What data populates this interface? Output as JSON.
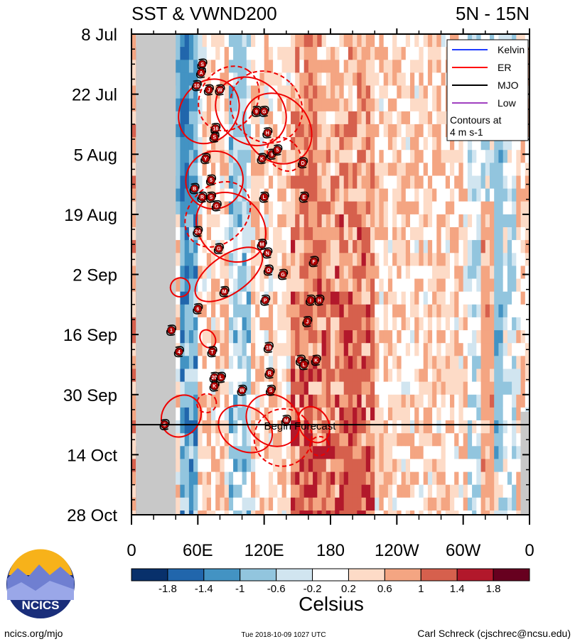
{
  "header": {
    "title_left": "SST & VWND200",
    "title_right": "5N - 15N"
  },
  "chart_data": {
    "type": "heatmap",
    "title": "SST & VWND200",
    "subtitle": "5N - 15N",
    "x_ticks": [
      "0",
      "60E",
      "120E",
      "180",
      "120W",
      "60W",
      "0"
    ],
    "x_range_deg_east": [
      0,
      360
    ],
    "y_ticks": [
      "8 Jul",
      "22 Jul",
      "5 Aug",
      "19 Aug",
      "2 Sep",
      "16 Sep",
      "30 Sep",
      "14 Oct",
      "28 Oct"
    ],
    "y_range_days_from_8jul": [
      0,
      112
    ],
    "forecast_start_day": 91,
    "forecast_label": "Begin Forecast",
    "colorbar": {
      "label": "Celsius",
      "tick_labels": [
        "-1.8",
        "-1.4",
        "-1",
        "-0.6",
        "-0.2",
        "0.2",
        "0.6",
        "1",
        "1.4",
        "1.8"
      ],
      "colors": [
        "#08306b",
        "#2166ac",
        "#4393c3",
        "#92c5de",
        "#d1e5f0",
        "#ffffff",
        "#fddbc7",
        "#f4a582",
        "#d6604d",
        "#b2182b",
        "#67001f"
      ]
    },
    "legend": {
      "items": [
        {
          "label": "Kelvin",
          "color": "#1f3cff"
        },
        {
          "label": "ER",
          "color": "#ff0000"
        },
        {
          "label": "MJO",
          "color": "#000000"
        },
        {
          "label": "Low",
          "color": "#a040c0"
        }
      ],
      "note_line1": "Contours at",
      "note_line2": "4 m s-1"
    },
    "bands": [
      {
        "lon": 40,
        "day": 0,
        "anom": -1.8
      },
      {
        "lon": 48,
        "day": 0,
        "anom": -1.4
      },
      {
        "lon": 55,
        "day": 0,
        "anom": -0.8
      },
      {
        "lon": 95,
        "day": 0,
        "anom": -0.9
      },
      {
        "lon": 160,
        "day": 30,
        "anom": 1.2
      },
      {
        "lon": 200,
        "day": 100,
        "anom": 1.3
      },
      {
        "lon": 330,
        "day": 60,
        "anom": -1.2
      },
      {
        "lon": 320,
        "day": 78,
        "anom": 1.5
      }
    ],
    "storms": [
      {
        "label": "S",
        "lon": 64,
        "day": 7
      },
      {
        "label": "A",
        "lon": 63,
        "day": 9
      },
      {
        "label": "10",
        "lon": 59,
        "day": 12
      },
      {
        "label": "J",
        "lon": 70,
        "day": 13
      },
      {
        "label": "W",
        "lon": 80,
        "day": 13
      },
      {
        "label": "9",
        "lon": 113,
        "day": 18
      },
      {
        "label": "G",
        "lon": 120,
        "day": 18
      },
      {
        "label": "16",
        "lon": 76,
        "day": 22
      },
      {
        "label": "S",
        "lon": 75,
        "day": 24
      },
      {
        "label": "H",
        "lon": 123,
        "day": 23
      },
      {
        "label": "K",
        "lon": 118,
        "day": 29
      },
      {
        "label": "9",
        "lon": 127,
        "day": 28
      },
      {
        "label": "5",
        "lon": 132,
        "day": 27
      },
      {
        "label": "Y",
        "lon": 67,
        "day": 29
      },
      {
        "label": "D",
        "lon": 155,
        "day": 30
      },
      {
        "label": "5",
        "lon": 72,
        "day": 34
      },
      {
        "label": "B",
        "lon": 57,
        "day": 36
      },
      {
        "label": "R",
        "lon": 64,
        "day": 38
      },
      {
        "label": "S",
        "lon": 72,
        "day": 38
      },
      {
        "label": "L",
        "lon": 120,
        "day": 38
      },
      {
        "label": "E",
        "lon": 156,
        "day": 38
      },
      {
        "label": "G",
        "lon": 77,
        "day": 40
      },
      {
        "label": "24",
        "lon": 60,
        "day": 46
      },
      {
        "label": "M",
        "lon": 118,
        "day": 49
      },
      {
        "label": "N",
        "lon": 123,
        "day": 51
      },
      {
        "label": "G",
        "lon": 79,
        "day": 50
      },
      {
        "label": "F",
        "lon": 165,
        "day": 53
      },
      {
        "label": "O",
        "lon": 124,
        "day": 55
      },
      {
        "label": "G",
        "lon": 137,
        "day": 56
      },
      {
        "label": "M",
        "lon": 84,
        "day": 60
      },
      {
        "label": "P",
        "lon": 121,
        "day": 62
      },
      {
        "label": "I",
        "lon": 162,
        "day": 62
      },
      {
        "label": "H",
        "lon": 170,
        "day": 62
      },
      {
        "label": "6",
        "lon": 60,
        "day": 64
      },
      {
        "label": "J",
        "lon": 159,
        "day": 67
      },
      {
        "label": "1",
        "lon": 36,
        "day": 69
      },
      {
        "label": "19",
        "lon": 124,
        "day": 73
      },
      {
        "label": "4",
        "lon": 43,
        "day": 74
      },
      {
        "label": "T",
        "lon": 73,
        "day": 74
      },
      {
        "label": "1",
        "lon": 153,
        "day": 76
      },
      {
        "label": "L",
        "lon": 156,
        "day": 77
      },
      {
        "label": "K",
        "lon": 167,
        "day": 76
      },
      {
        "label": "R",
        "lon": 125,
        "day": 79
      },
      {
        "label": "20",
        "lon": 75,
        "day": 80
      },
      {
        "label": "K",
        "lon": 75,
        "day": 82
      },
      {
        "label": "L",
        "lon": 81,
        "day": 80
      },
      {
        "label": "S",
        "lon": 126,
        "day": 83
      },
      {
        "label": "W",
        "lon": 100,
        "day": 83
      },
      {
        "label": "5",
        "lon": 30,
        "day": 91
      },
      {
        "label": "M",
        "lon": 140,
        "day": 90
      }
    ],
    "er_contours": [
      {
        "lon": 70,
        "day": 18,
        "rx": 14,
        "ry": 3,
        "rot": -55,
        "dashed": false
      },
      {
        "lon": 88,
        "day": 15,
        "rx": 14,
        "ry": 3,
        "rot": -55,
        "dashed": true
      },
      {
        "lon": 108,
        "day": 18,
        "rx": 13,
        "ry": 4,
        "rot": -50,
        "dashed": false
      },
      {
        "lon": 122,
        "day": 17,
        "rx": 14,
        "ry": 4,
        "rot": -45,
        "dashed": true
      },
      {
        "lon": 132,
        "day": 22,
        "rx": 13,
        "ry": 4,
        "rot": -40,
        "dashed": false
      },
      {
        "lon": 138,
        "day": 28,
        "rx": 6,
        "ry": 2,
        "rot": -45,
        "dashed": true
      },
      {
        "lon": 75,
        "day": 34,
        "rx": 12,
        "ry": 3,
        "rot": -55,
        "dashed": false
      },
      {
        "lon": 78,
        "day": 42,
        "rx": 15,
        "ry": 3,
        "rot": -45,
        "dashed": true
      },
      {
        "lon": 90,
        "day": 45,
        "rx": 13,
        "ry": 4,
        "rot": -45,
        "dashed": false
      },
      {
        "lon": 88,
        "day": 56,
        "rx": 16,
        "ry": 2,
        "rot": -35,
        "dashed": false
      },
      {
        "lon": 44,
        "day": 59,
        "rx": 4,
        "ry": 1,
        "rot": -20,
        "dashed": false
      },
      {
        "lon": 69,
        "day": 71,
        "rx": 3,
        "ry": 1,
        "rot": -30,
        "dashed": false
      },
      {
        "lon": 45,
        "day": 89,
        "rx": 9,
        "ry": 2,
        "rot": -55,
        "dashed": false
      },
      {
        "lon": 68,
        "day": 86,
        "rx": 4,
        "ry": 1,
        "rot": -20,
        "dashed": true
      },
      {
        "lon": 103,
        "day": 92,
        "rx": 9,
        "ry": 3,
        "rot": -60,
        "dashed": false
      },
      {
        "lon": 128,
        "day": 90,
        "rx": 10,
        "ry": 3,
        "rot": -50,
        "dashed": false
      },
      {
        "lon": 137,
        "day": 94,
        "rx": 12,
        "ry": 3,
        "rot": -45,
        "dashed": true
      },
      {
        "lon": 165,
        "day": 91,
        "rx": 6,
        "ry": 2,
        "rot": -30,
        "dashed": false
      },
      {
        "lon": 170,
        "day": 96,
        "rx": 4,
        "ry": 1,
        "rot": -30,
        "dashed": true
      }
    ]
  },
  "logo": {
    "name": "NCICS"
  },
  "footer": {
    "left": "ncics.org/mjo",
    "center": "Tue 2018-10-09 1027 UTC",
    "right": "Carl Schreck (cjschrec@ncsu.edu)"
  }
}
